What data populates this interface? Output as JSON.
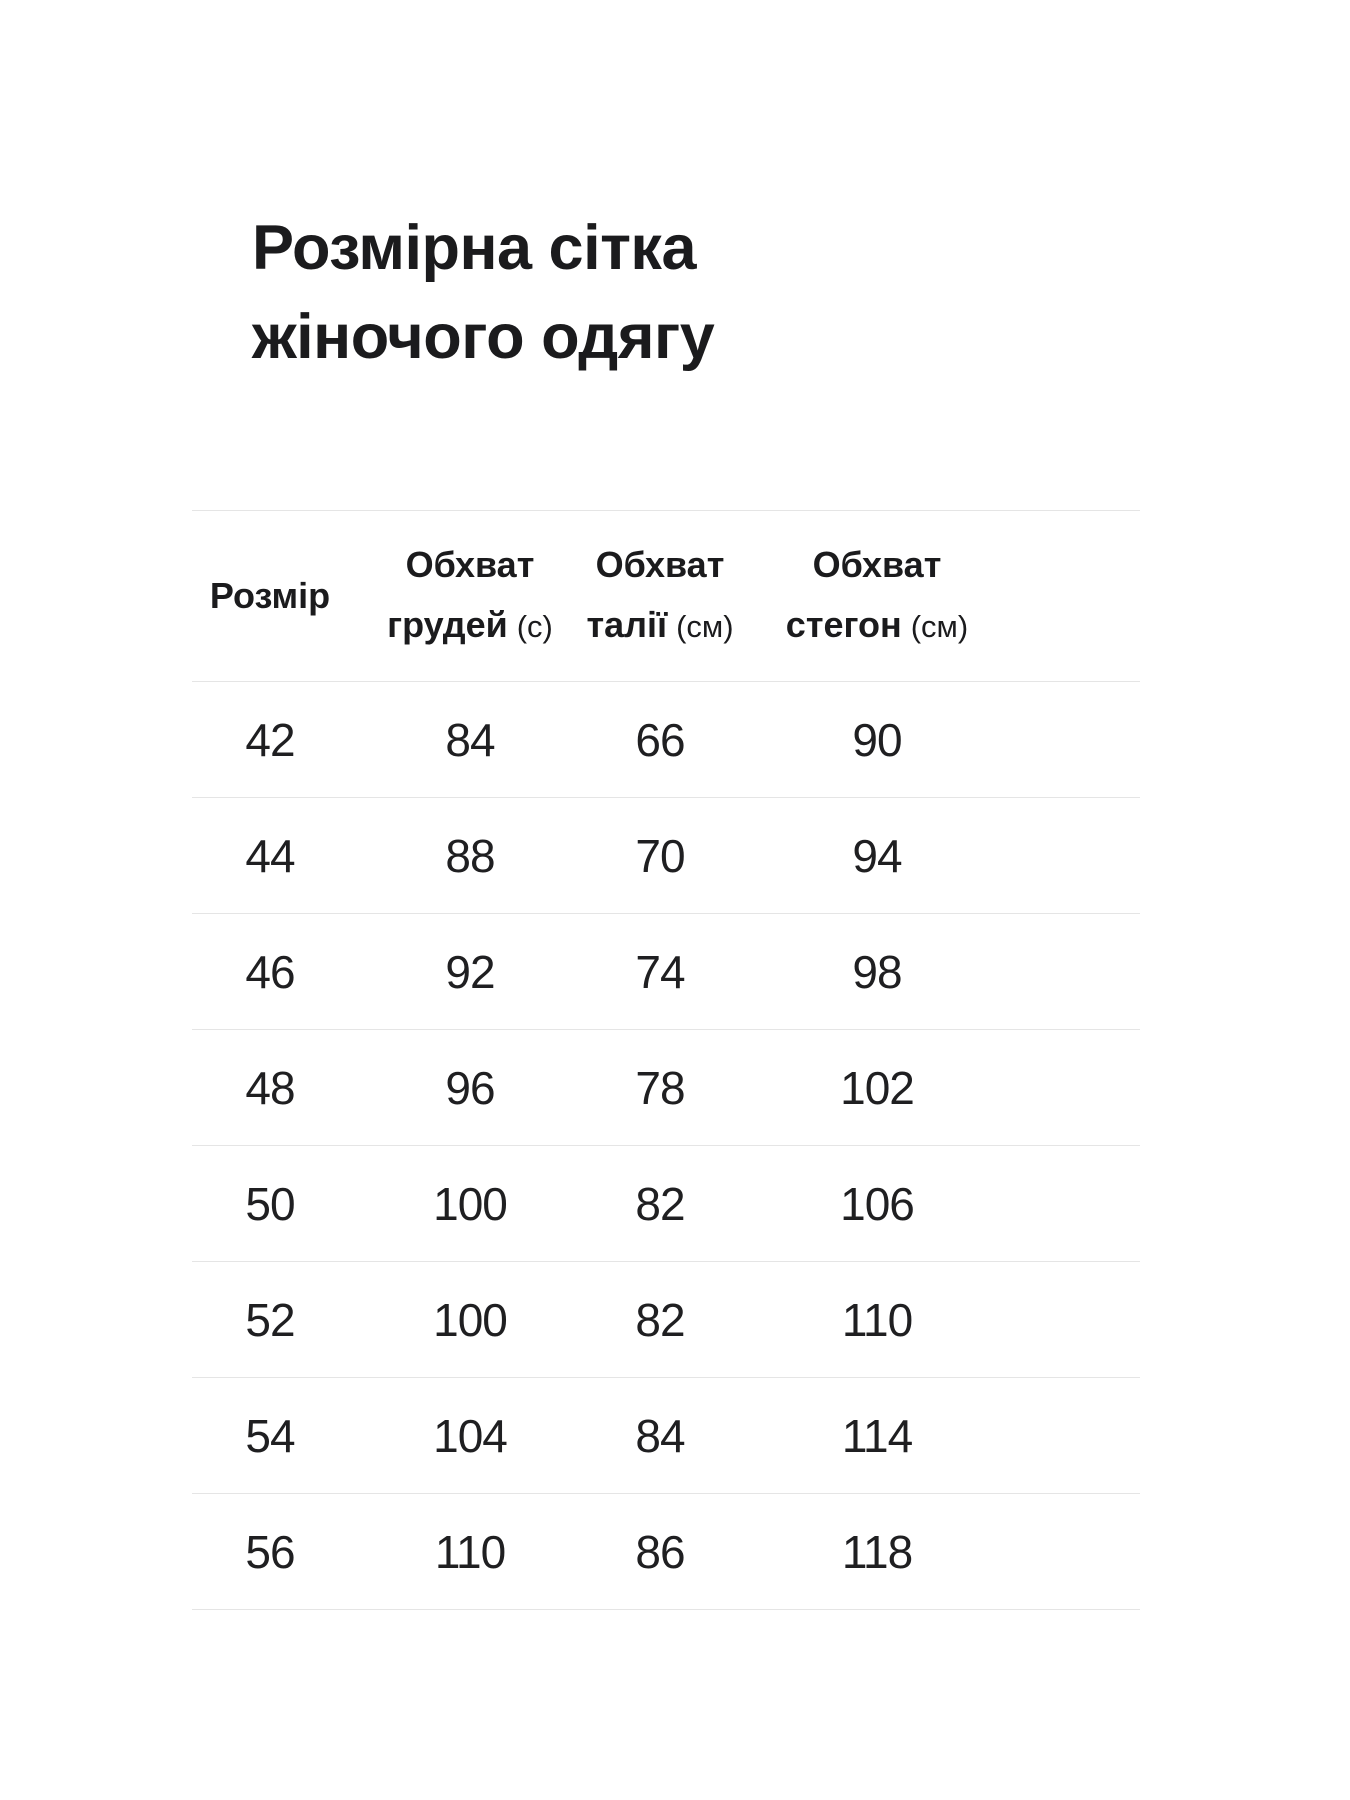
{
  "page": {
    "title": {
      "line1": "Розмірна сітка",
      "line2": "жіночого одягу"
    }
  },
  "table": {
    "columns": [
      {
        "label": "Розмір"
      },
      {
        "line1": "Обхват",
        "line2": "грудей",
        "unit": "(с)"
      },
      {
        "line1": "Обхват",
        "line2": "талії",
        "unit": "(см)"
      },
      {
        "line1": "Обхват",
        "line2": "стегон",
        "unit": "(см)"
      }
    ],
    "rows": [
      {
        "size": "42",
        "chest": "84",
        "waist": "66",
        "hips": "90"
      },
      {
        "size": "44",
        "chest": "88",
        "waist": "70",
        "hips": "94"
      },
      {
        "size": "46",
        "chest": "92",
        "waist": "74",
        "hips": "98"
      },
      {
        "size": "48",
        "chest": "96",
        "waist": "78",
        "hips": "102"
      },
      {
        "size": "50",
        "chest": "100",
        "waist": "82",
        "hips": "106"
      },
      {
        "size": "52",
        "chest": "100",
        "waist": "82",
        "hips": "110"
      },
      {
        "size": "54",
        "chest": "104",
        "waist": "84",
        "hips": "114"
      },
      {
        "size": "56",
        "chest": "110",
        "waist": "86",
        "hips": "118"
      }
    ]
  },
  "colors": {
    "background": "#ffffff",
    "text": "#1b1b1d",
    "divider": "#e5e5e5"
  }
}
